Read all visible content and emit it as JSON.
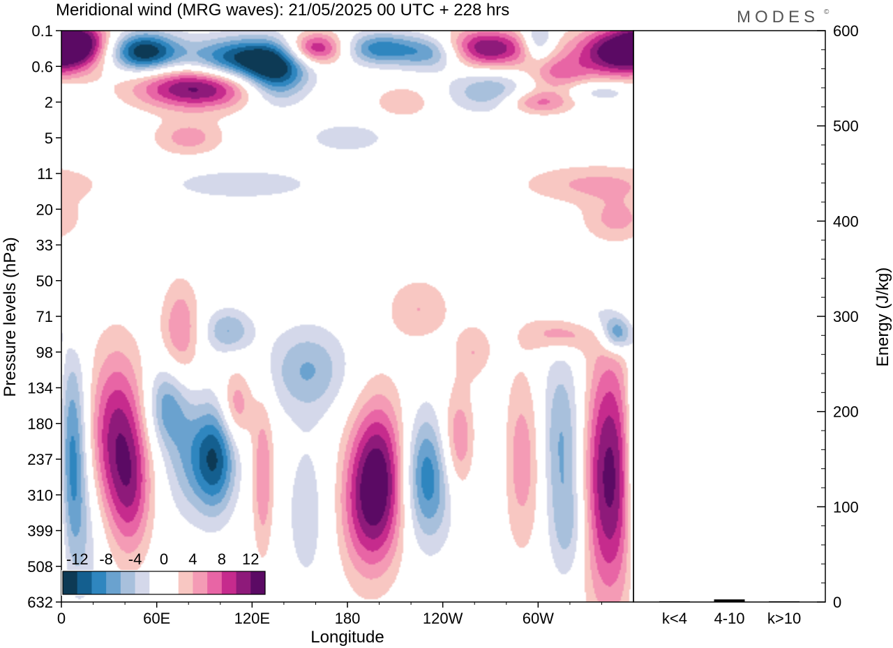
{
  "title": "Meridional wind (MRG waves):  21/05/2025  00 UTC  + 228 hrs",
  "logo": "MODES",
  "logo_mark": "©",
  "chart_data": [
    {
      "type": "heatmap",
      "ylabel": "Pressure levels (hPa)",
      "xlabel": "Longitude",
      "x_ticks": [
        "0",
        "60E",
        "120E",
        "180",
        "120W",
        "60W"
      ],
      "x_tick_values": [
        0,
        60,
        120,
        180,
        240,
        300
      ],
      "xlim": [
        0,
        360
      ],
      "y_ticks": [
        "0.1",
        "0.6",
        "2",
        "5",
        "11",
        "20",
        "33",
        "50",
        "71",
        "98",
        "134",
        "180",
        "237",
        "310",
        "399",
        "508",
        "632"
      ],
      "colorbar": {
        "labels": [
          "-12",
          "-8",
          "-4",
          "0",
          "4",
          "8",
          "12"
        ],
        "label_values": [
          -12,
          -8,
          -4,
          0,
          4,
          8,
          12
        ],
        "colors": [
          "#0d3a55",
          "#145f8f",
          "#2f86bf",
          "#6aa2cf",
          "#a8c0dc",
          "#d4d8ea",
          "#ffffff",
          "#ffffff",
          "#f8c7c2",
          "#f49bb5",
          "#e865a5",
          "#c62b8d",
          "#8e1a7a",
          "#5b0a64"
        ]
      },
      "blobs": [
        {
          "lon": 52,
          "lev": 0.6,
          "v": -14,
          "rx": 22,
          "ry": 0.55
        },
        {
          "lon": 112,
          "lev": 0.8,
          "v": -12,
          "rx": 32,
          "ry": 0.6
        },
        {
          "lon": 135,
          "lev": 1.2,
          "v": -11,
          "rx": 20,
          "ry": 0.8
        },
        {
          "lon": 200,
          "lev": 0.5,
          "v": -9,
          "rx": 22,
          "ry": 0.45
        },
        {
          "lon": 235,
          "lev": 0.6,
          "v": -10,
          "rx": 22,
          "ry": 0.5
        },
        {
          "lon": 300,
          "lev": 0.3,
          "v": -7,
          "rx": 10,
          "ry": 0.6
        },
        {
          "lon": 270,
          "lev": 1.7,
          "v": -6,
          "rx": 26,
          "ry": 0.6
        },
        {
          "lon": 340,
          "lev": 1.7,
          "v": -4,
          "rx": 22,
          "ry": 0.3
        },
        {
          "lon": 113,
          "lev": 4.3,
          "v": -3.5,
          "rx": 50,
          "ry": 0.45
        },
        {
          "lon": 180,
          "lev": 3.0,
          "v": -3,
          "rx": 30,
          "ry": 0.5
        },
        {
          "lon": 12,
          "lev": 0.3,
          "v": 10,
          "rx": 18,
          "ry": 0.6
        },
        {
          "lon": 85,
          "lev": 1.6,
          "v": 13,
          "rx": 38,
          "ry": 0.6
        },
        {
          "lon": 80,
          "lev": 3.0,
          "v": 5,
          "rx": 22,
          "ry": 0.5
        },
        {
          "lon": 160,
          "lev": 0.5,
          "v": 11,
          "rx": 18,
          "ry": 0.45
        },
        {
          "lon": 265,
          "lev": 0.5,
          "v": 13,
          "rx": 32,
          "ry": 0.55
        },
        {
          "lon": 352,
          "lev": 0.6,
          "v": 15,
          "rx": 28,
          "ry": 0.7
        },
        {
          "lon": 312,
          "lev": 1.2,
          "v": 6,
          "rx": 20,
          "ry": 0.5
        },
        {
          "lon": 300,
          "lev": 2.0,
          "v": 7,
          "rx": 22,
          "ry": 0.35
        },
        {
          "lon": 215,
          "lev": 2.0,
          "v": 4,
          "rx": 18,
          "ry": 0.45
        },
        {
          "lon": 337,
          "lev": 4.3,
          "v": 4.5,
          "rx": 48,
          "ry": 0.55
        },
        {
          "lon": 350,
          "lev": 5.3,
          "v": 4.5,
          "rx": 22,
          "ry": 0.6
        },
        {
          "lon": 225,
          "lev": 7.8,
          "v": 4,
          "rx": 20,
          "ry": 0.9
        },
        {
          "lon": 5,
          "lev": 8.0,
          "v": 3,
          "rx": 12,
          "ry": 0.9
        },
        {
          "lon": 75,
          "lev": 8.4,
          "v": 6,
          "rx": 12,
          "ry": 1.4
        },
        {
          "lon": 260,
          "lev": 9.0,
          "v": 4,
          "rx": 12,
          "ry": 0.8
        },
        {
          "lon": 315,
          "lev": 8.5,
          "v": 6,
          "rx": 22,
          "ry": 0.5
        },
        {
          "lon": 340,
          "lev": 8.0,
          "v": -4,
          "rx": 18,
          "ry": 0.6
        },
        {
          "lon": 350,
          "lev": 8.5,
          "v": -9,
          "rx": 10,
          "ry": 0.5
        },
        {
          "lon": 105,
          "lev": 8.4,
          "v": -6,
          "rx": 15,
          "ry": 0.6
        },
        {
          "lon": 155,
          "lev": 9.5,
          "v": -6,
          "rx": 25,
          "ry": 1.2
        },
        {
          "lon": 6,
          "lev": 12.0,
          "v": -12,
          "rx": 10,
          "ry": 3.0
        },
        {
          "lon": 35,
          "lev": 11.5,
          "v": 11,
          "rx": 18,
          "ry": 2.5
        },
        {
          "lon": 45,
          "lev": 13.0,
          "v": 5,
          "rx": 12,
          "ry": 1.8
        },
        {
          "lon": 66,
          "lev": 10.5,
          "v": -7,
          "rx": 13,
          "ry": 1.2
        },
        {
          "lon": 80,
          "lev": 12.0,
          "v": -5,
          "rx": 15,
          "ry": 1.6
        },
        {
          "lon": 97,
          "lev": 12.0,
          "v": -11,
          "rx": 13,
          "ry": 1.5
        },
        {
          "lon": 110,
          "lev": 10.5,
          "v": 6,
          "rx": 10,
          "ry": 1.0
        },
        {
          "lon": 127,
          "lev": 12.5,
          "v": 6,
          "rx": 7,
          "ry": 2.2
        },
        {
          "lon": 200,
          "lev": 12.5,
          "v": 12,
          "rx": 18,
          "ry": 2.2
        },
        {
          "lon": 230,
          "lev": 12.5,
          "v": -10,
          "rx": 16,
          "ry": 1.8
        },
        {
          "lon": 250,
          "lev": 11.5,
          "v": 7,
          "rx": 12,
          "ry": 1.5
        },
        {
          "lon": 290,
          "lev": 12.0,
          "v": 6,
          "rx": 15,
          "ry": 2.5
        },
        {
          "lon": 315,
          "lev": 11.5,
          "v": -7,
          "rx": 15,
          "ry": 2.5
        },
        {
          "lon": 345,
          "lev": 12.5,
          "v": 13,
          "rx": 18,
          "ry": 3.5
        },
        {
          "lon": 320,
          "lev": 14.0,
          "v": -4,
          "rx": 12,
          "ry": 1.5
        },
        {
          "lon": 270,
          "lev": 12.0,
          "v": -3,
          "rx": 14,
          "ry": 2.2
        },
        {
          "lon": 190,
          "lev": 13.5,
          "v": 5,
          "rx": 18,
          "ry": 2.0
        },
        {
          "lon": 18,
          "lev": 14.0,
          "v": -3,
          "rx": 12,
          "ry": 2.2
        },
        {
          "lon": 155,
          "lev": 13.5,
          "v": -3,
          "rx": 16,
          "ry": 2.5
        }
      ],
      "energy_panel": {
        "ylabel": "Energy (J/kg)",
        "y_ticks": [
          "0",
          "100",
          "200",
          "300",
          "400",
          "500",
          "600"
        ],
        "ylim": [
          0,
          600
        ],
        "categories": [
          "k<4",
          "4-10",
          "k>10"
        ],
        "values": [
          0,
          2,
          0
        ]
      }
    }
  ]
}
